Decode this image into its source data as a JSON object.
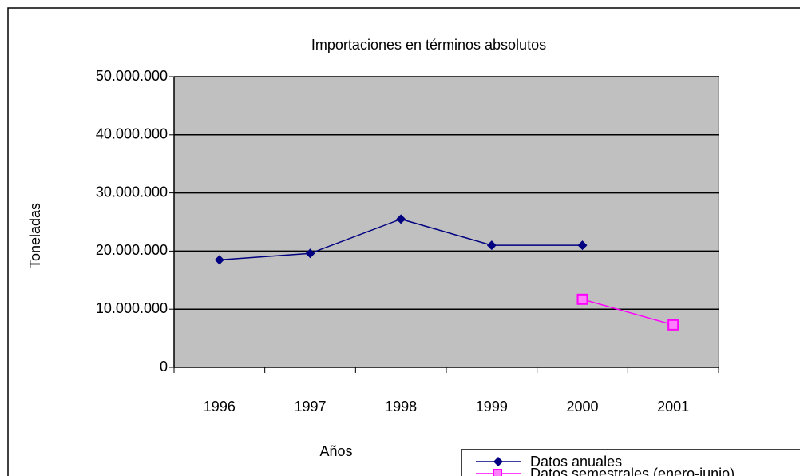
{
  "chart_data": {
    "type": "line",
    "title": "Importaciones en términos absolutos",
    "x_label": "Años",
    "y_label": "Toneladas",
    "categories": [
      "1996",
      "1997",
      "1998",
      "1999",
      "2000",
      "2001"
    ],
    "series": [
      {
        "name": "Datos anuales",
        "color": "#000080",
        "marker": "diamond",
        "values": [
          18500000,
          19600000,
          25500000,
          21000000,
          21000000,
          null
        ]
      },
      {
        "name": "Datos semestrales (enero-junio)",
        "color": "#ff00ff",
        "marker": "square",
        "values": [
          null,
          null,
          null,
          null,
          11700000,
          7300000
        ]
      }
    ],
    "ylim": [
      0,
      50000000
    ],
    "yticks": [
      0,
      {
        "value": 10000000,
        "label": "10.000.000"
      },
      {
        "value": 20000000,
        "label": "20.000.000"
      },
      {
        "value": 30000000,
        "label": "30.000.000"
      },
      {
        "value": 40000000,
        "label": "40.000.000"
      },
      {
        "value": 50000000,
        "label": "50.000.000"
      }
    ],
    "grid": true,
    "legend": "bottom-right"
  }
}
